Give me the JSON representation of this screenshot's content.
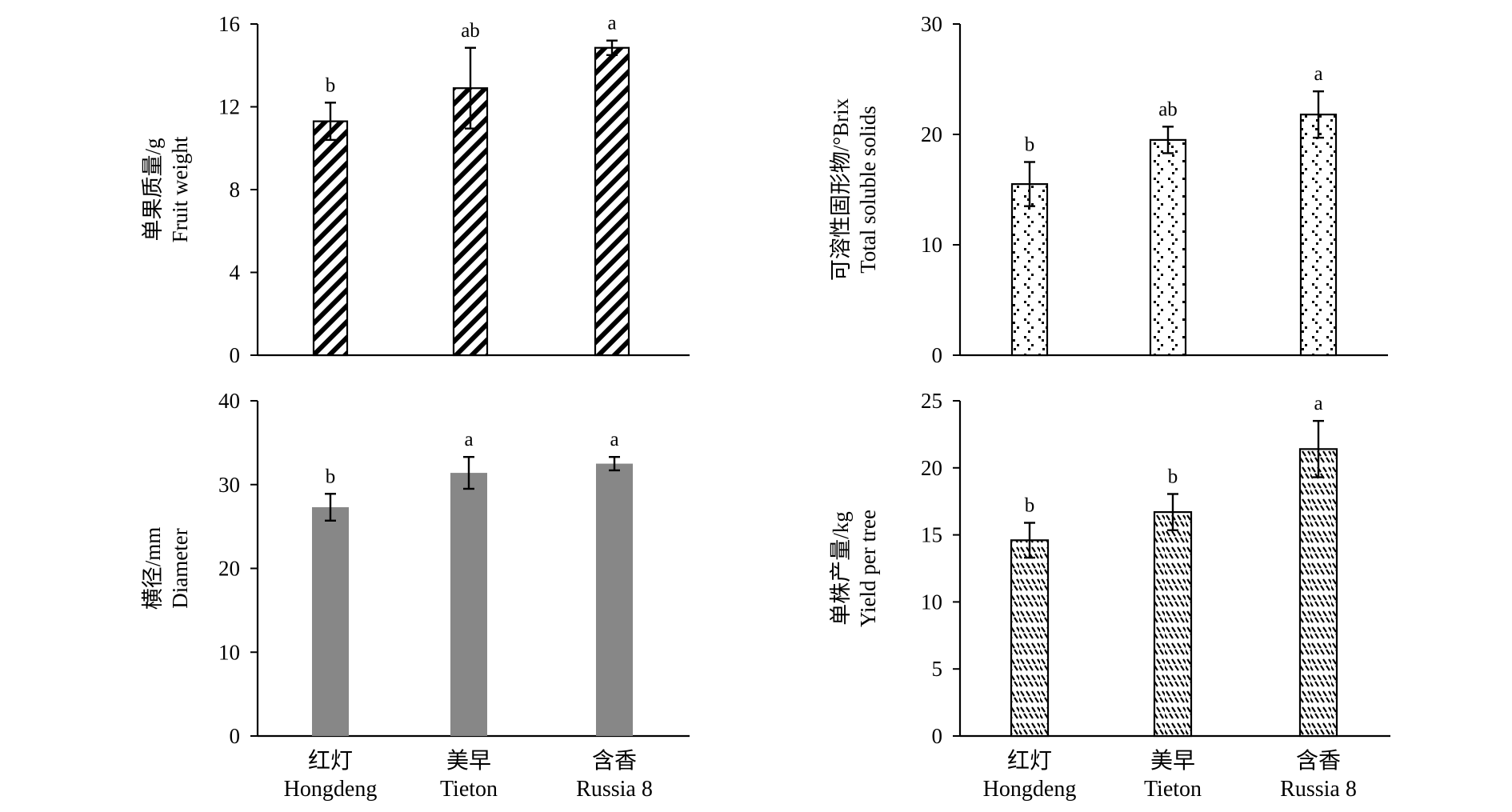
{
  "chart_data": [
    {
      "type": "bar",
      "ylabel": [
        "单果质量/g",
        "Fruit weight"
      ],
      "ylim": [
        0,
        16
      ],
      "yticks": [
        0,
        4,
        8,
        12,
        16
      ],
      "categories": [
        [
          "红灯",
          "Hongdeng"
        ],
        [
          "美早",
          "Tieton"
        ],
        [
          "含香",
          "Russia 8"
        ]
      ],
      "values": [
        11.3,
        12.9,
        14.85
      ],
      "errors": [
        0.9,
        1.95,
        0.35
      ],
      "significance": [
        "b",
        "ab",
        "a"
      ],
      "fill": "diagonal-hatch"
    },
    {
      "type": "bar",
      "ylabel": [
        "可溶性固形物/°Brix",
        "Total soluble solids"
      ],
      "ylim": [
        0,
        30
      ],
      "yticks": [
        0,
        10,
        20,
        30
      ],
      "categories": [
        [
          "红灯",
          "Hongdeng"
        ],
        [
          "美早",
          "Tieton"
        ],
        [
          "含香",
          "Russia 8"
        ]
      ],
      "values": [
        15.5,
        19.5,
        21.8
      ],
      "errors": [
        2.0,
        1.2,
        2.1
      ],
      "significance": [
        "b",
        "ab",
        "a"
      ],
      "fill": "dotted"
    },
    {
      "type": "bar",
      "ylabel": [
        "横径/mm",
        "Diameter"
      ],
      "ylim": [
        0,
        40
      ],
      "yticks": [
        0,
        10,
        20,
        30,
        40
      ],
      "categories": [
        [
          "红灯",
          "Hongdeng"
        ],
        [
          "美早",
          "Tieton"
        ],
        [
          "含香",
          "Russia 8"
        ]
      ],
      "values": [
        27.3,
        31.4,
        32.5
      ],
      "errors": [
        1.6,
        1.9,
        0.8
      ],
      "significance": [
        "b",
        "a",
        "a"
      ],
      "fill": "solid",
      "color": "#878787"
    },
    {
      "type": "bar",
      "ylabel": [
        "单株产量/kg",
        "Yield per tree"
      ],
      "ylim": [
        0,
        25
      ],
      "yticks": [
        0,
        5,
        10,
        15,
        20,
        25
      ],
      "categories": [
        [
          "红灯",
          "Hongdeng"
        ],
        [
          "美早",
          "Tieton"
        ],
        [
          "含香",
          "Russia 8"
        ]
      ],
      "values": [
        14.6,
        16.7,
        21.4
      ],
      "errors": [
        1.3,
        1.35,
        2.1
      ],
      "significance": [
        "b",
        "b",
        "a"
      ],
      "fill": "dashed-hatch"
    }
  ]
}
